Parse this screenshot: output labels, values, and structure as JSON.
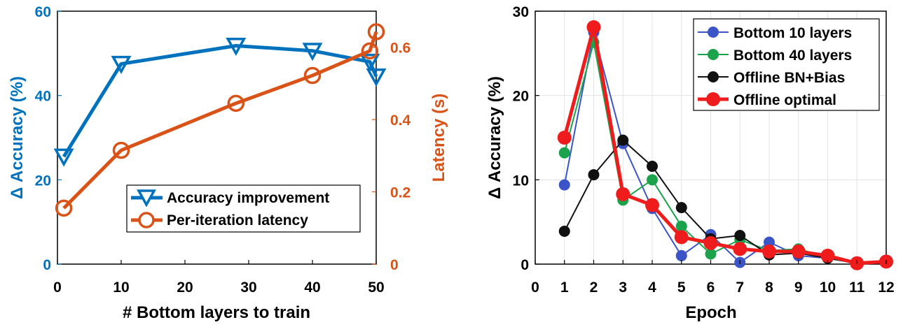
{
  "chart_data": [
    {
      "type": "line",
      "xlabel": "# Bottom layers to train",
      "ylabel": "Δ Accuracy (%)",
      "y2label": "Latency (s)",
      "xlim": [
        0,
        50
      ],
      "ylim": [
        0,
        60
      ],
      "y2lim": [
        0,
        0.7
      ],
      "xticks": [
        "0",
        "10",
        "20",
        "30",
        "40",
        "50"
      ],
      "yticks": [
        "0",
        "20",
        "40",
        "60"
      ],
      "y2ticks": [
        "0",
        "0.2",
        "0.4",
        "0.6"
      ],
      "grid": false,
      "legend_position": "bottom-right",
      "colors": {
        "left": "#0072BD",
        "right": "#D95319"
      },
      "series": [
        {
          "name": "Accuracy improvement",
          "axis": "left",
          "marker": "triangle-down",
          "color": "#0072BD",
          "x": [
            1,
            10,
            28,
            40,
            49,
            50
          ],
          "y": [
            25.5,
            47.5,
            51.8,
            50.6,
            48.0,
            44.5
          ]
        },
        {
          "name": "Per-iteration latency",
          "axis": "right",
          "marker": "circle",
          "color": "#D95319",
          "x": [
            1,
            10,
            28,
            40,
            49,
            50
          ],
          "y": [
            0.155,
            0.315,
            0.445,
            0.522,
            0.59,
            0.643
          ]
        }
      ]
    },
    {
      "type": "line",
      "xlabel": "Epoch",
      "ylabel": "Δ Accuracy (%)",
      "xlim": [
        0,
        12
      ],
      "ylim": [
        0,
        30
      ],
      "xticks": [
        "0",
        "1",
        "2",
        "3",
        "4",
        "5",
        "6",
        "7",
        "8",
        "9",
        "10",
        "11",
        "12"
      ],
      "yticks": [
        "0",
        "10",
        "20",
        "30"
      ],
      "grid": true,
      "legend_position": "top-right",
      "series": [
        {
          "name": "Bottom 10 layers",
          "color": "#3B55C8",
          "x": [
            1,
            2,
            3,
            4,
            5,
            6,
            7,
            8,
            9,
            10,
            11,
            12
          ],
          "y": [
            9.4,
            27.5,
            14.3,
            6.6,
            1.0,
            3.5,
            0.2,
            2.6,
            1.0,
            0.7,
            0.1,
            0.3
          ]
        },
        {
          "name": "Bottom 40 layers",
          "color": "#1AA34A",
          "x": [
            1,
            2,
            3,
            4,
            5,
            6,
            7,
            8,
            9,
            10,
            11,
            12
          ],
          "y": [
            13.2,
            26.3,
            7.6,
            10.0,
            4.5,
            1.2,
            2.9,
            1.6,
            1.8,
            0.8,
            0.1,
            0.3
          ]
        },
        {
          "name": "Offline BN+Bias",
          "color": "#111111",
          "x": [
            1,
            2,
            3,
            4,
            5,
            6,
            7,
            8,
            9,
            10,
            11,
            12
          ],
          "y": [
            3.9,
            10.6,
            14.7,
            11.6,
            6.7,
            3.0,
            3.4,
            1.1,
            1.3,
            0.7,
            0.1,
            0.3
          ]
        },
        {
          "name": "Offline optimal",
          "color": "#EE1C1C",
          "x": [
            1,
            2,
            3,
            4,
            5,
            6,
            7,
            8,
            9,
            10,
            11,
            12
          ],
          "y": [
            15.0,
            28.1,
            8.3,
            7.0,
            3.2,
            2.5,
            1.8,
            1.5,
            1.5,
            1.0,
            0.1,
            0.3
          ]
        }
      ]
    }
  ]
}
